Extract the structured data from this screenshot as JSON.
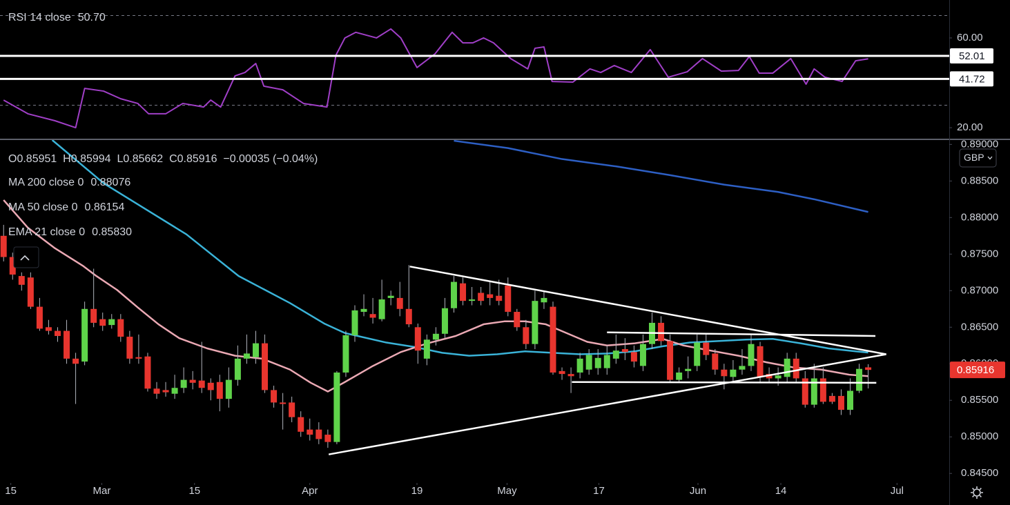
{
  "chart_data": [
    {
      "type": "line",
      "xlim": [
        -0.4,
        105
      ],
      "ylim": [
        14.8,
        76.9
      ],
      "yticks": [
        {
          "value": 20,
          "label": "20.00"
        },
        {
          "value": 60,
          "label": "60.00"
        }
      ],
      "bands": [
        30,
        70
      ],
      "levels": [
        52.01,
        41.72
      ],
      "series": [
        {
          "name": "RSI 14 close",
          "color": "#a03fc7",
          "last_label": "50.70",
          "x": [
            0,
            2.7,
            5.7,
            8.0,
            9.0,
            11.1,
            13.0,
            14.9,
            16.1,
            18.0,
            19.9,
            22.2,
            23.0,
            24.1,
            25.7,
            26.8,
            28.0,
            28.9,
            31.0,
            33.3,
            35.9,
            36.9,
            37.9,
            39.1,
            41.4,
            43.0,
            44.1,
            45.9,
            47.9,
            49.8,
            51.0,
            52.1,
            53.3,
            54.4,
            56.3,
            58.2,
            59.0,
            60.0,
            60.9,
            63.2,
            65.1,
            66.3,
            67.8,
            69.7,
            71.8,
            73.8,
            75.9,
            77.6,
            79.7,
            81.6,
            82.8,
            83.9,
            85.4,
            87.4,
            89.1,
            90.0,
            91.2,
            93.1,
            94.6,
            96.0
          ],
          "values": [
            32.3,
            26.2,
            23.1,
            20.0,
            37.5,
            36.3,
            32.9,
            30.8,
            26.2,
            26.2,
            30.8,
            29.2,
            32.3,
            29.2,
            43.1,
            44.6,
            48.6,
            38.5,
            36.9,
            30.8,
            29.2,
            52.3,
            60.0,
            62.5,
            60.0,
            64.0,
            60.0,
            46.8,
            52.9,
            62.5,
            57.8,
            57.8,
            60.0,
            57.8,
            50.8,
            46.2,
            55.4,
            56.0,
            40.6,
            40.3,
            46.2,
            44.6,
            47.7,
            44.6,
            54.8,
            42.5,
            44.9,
            50.8,
            45.2,
            45.5,
            51.7,
            44.3,
            44.3,
            50.8,
            39.4,
            46.2,
            42.5,
            40.6,
            49.8,
            50.7
          ]
        }
      ]
    },
    {
      "type": "candlestick",
      "ohlc_text": "O0.85951  H0.85994  L0.85662  C0.85916  −0.00035 (−0.04%)",
      "currency": "GBP",
      "up_color": "#5fd34a",
      "down_color": "#e8352e",
      "xlim": [
        -0.4,
        105
      ],
      "ylim": [
        0.8437,
        0.8906
      ],
      "xticks": [
        {
          "value": 0.8,
          "label": "15"
        },
        {
          "value": 10.9,
          "label": "Mar"
        },
        {
          "value": 21.2,
          "label": "15"
        },
        {
          "value": 34.0,
          "label": "Apr"
        },
        {
          "value": 45.9,
          "label": "19"
        },
        {
          "value": 55.9,
          "label": "May"
        },
        {
          "value": 66.1,
          "label": "17"
        },
        {
          "value": 77.1,
          "label": "Jun"
        },
        {
          "value": 86.3,
          "label": "14"
        },
        {
          "value": 99.2,
          "label": "Jul"
        }
      ],
      "yticks": [
        {
          "value": 0.845,
          "label": "0.84500"
        },
        {
          "value": 0.85,
          "label": "0.85000"
        },
        {
          "value": 0.855,
          "label": "0.85500"
        },
        {
          "value": 0.86,
          "label": "0.86000"
        },
        {
          "value": 0.865,
          "label": "0.86500"
        },
        {
          "value": 0.87,
          "label": "0.87000"
        },
        {
          "value": 0.875,
          "label": "0.87500"
        },
        {
          "value": 0.88,
          "label": "0.88000"
        },
        {
          "value": 0.885,
          "label": "0.88500"
        },
        {
          "value": 0.89,
          "label": "0.89000"
        }
      ],
      "x": [
        0,
        1,
        2,
        3,
        4,
        5,
        6,
        7,
        8,
        9,
        10,
        11,
        12,
        13,
        14,
        15,
        16,
        17,
        18,
        19,
        20,
        21,
        22,
        23,
        24,
        25,
        26,
        27,
        28,
        29,
        30,
        31,
        32,
        33,
        34,
        35,
        36,
        37,
        38,
        39,
        40,
        41,
        42,
        43,
        44,
        45,
        46,
        47,
        48,
        49,
        50,
        51,
        52,
        53,
        54,
        55,
        56,
        57,
        58,
        59,
        60,
        61,
        62,
        63,
        64,
        65,
        66,
        67,
        68,
        69,
        70,
        71,
        72,
        73,
        74,
        75,
        76,
        77,
        78,
        79,
        80,
        81,
        82,
        83,
        84,
        85,
        86,
        87,
        88,
        89,
        90,
        91,
        92,
        93,
        94,
        95,
        96
      ],
      "open": [
        0.8775,
        0.8746,
        0.872,
        0.8718,
        0.8678,
        0.865,
        0.8645,
        0.8645,
        0.8607,
        0.8603,
        0.8675,
        0.8661,
        0.8653,
        0.8661,
        0.8637,
        0.8609,
        0.861,
        0.8566,
        0.8564,
        0.8559,
        0.8567,
        0.8578,
        0.8577,
        0.8574,
        0.8575,
        0.8552,
        0.8578,
        0.8607,
        0.8609,
        0.8628,
        0.8564,
        0.8547,
        0.8547,
        0.8527,
        0.851,
        0.851,
        0.8503,
        0.8493,
        0.8588,
        0.8639,
        0.8671,
        0.8668,
        0.8661,
        0.869,
        0.869,
        0.8675,
        0.865,
        0.8607,
        0.8633,
        0.8641,
        0.8676,
        0.871,
        0.8686,
        0.8697,
        0.8695,
        0.8693,
        0.8707,
        0.8671,
        0.865,
        0.8627,
        0.8684,
        0.8678,
        0.859,
        0.8586,
        0.8588,
        0.8592,
        0.8594,
        0.8594,
        0.8607,
        0.862,
        0.8616,
        0.8597,
        0.8627,
        0.8656,
        0.8631,
        0.8578,
        0.859,
        0.8597,
        0.8629,
        0.8614,
        0.8592,
        0.8582,
        0.8592,
        0.8597,
        0.8624,
        0.8586,
        0.858,
        0.8582,
        0.8607,
        0.858,
        0.8544,
        0.858,
        0.8556,
        0.8556,
        0.8537,
        0.8563,
        0.85951
      ],
      "high": [
        0.879,
        0.8752,
        0.8725,
        0.8725,
        0.869,
        0.866,
        0.865,
        0.866,
        0.8615,
        0.8685,
        0.873,
        0.867,
        0.8668,
        0.8668,
        0.8645,
        0.864,
        0.8615,
        0.8575,
        0.8575,
        0.8585,
        0.8595,
        0.859,
        0.863,
        0.858,
        0.8585,
        0.8595,
        0.8625,
        0.864,
        0.8645,
        0.864,
        0.857,
        0.856,
        0.8555,
        0.8535,
        0.8525,
        0.852,
        0.851,
        0.859,
        0.8645,
        0.868,
        0.8695,
        0.869,
        0.8715,
        0.87,
        0.8712,
        0.8735,
        0.8655,
        0.864,
        0.865,
        0.869,
        0.872,
        0.8718,
        0.8705,
        0.8705,
        0.8712,
        0.8715,
        0.8718,
        0.8675,
        0.866,
        0.87,
        0.87,
        0.8685,
        0.8595,
        0.8595,
        0.8615,
        0.862,
        0.862,
        0.8625,
        0.864,
        0.8635,
        0.8625,
        0.864,
        0.867,
        0.8665,
        0.864,
        0.8595,
        0.861,
        0.864,
        0.864,
        0.862,
        0.86,
        0.8605,
        0.862,
        0.864,
        0.863,
        0.8595,
        0.8595,
        0.8615,
        0.8615,
        0.859,
        0.86,
        0.8595,
        0.856,
        0.8565,
        0.858,
        0.86,
        0.85994
      ],
      "low": [
        0.874,
        0.8715,
        0.87,
        0.8675,
        0.8645,
        0.864,
        0.863,
        0.86,
        0.8545,
        0.8598,
        0.865,
        0.8645,
        0.8648,
        0.863,
        0.86,
        0.86,
        0.8562,
        0.8552,
        0.8555,
        0.8552,
        0.856,
        0.8565,
        0.856,
        0.855,
        0.8535,
        0.854,
        0.857,
        0.86,
        0.86,
        0.856,
        0.854,
        0.851,
        0.852,
        0.85,
        0.8495,
        0.849,
        0.8485,
        0.849,
        0.8582,
        0.863,
        0.8665,
        0.8655,
        0.8658,
        0.868,
        0.8665,
        0.865,
        0.86,
        0.8598,
        0.8625,
        0.8635,
        0.867,
        0.868,
        0.868,
        0.868,
        0.868,
        0.868,
        0.8665,
        0.8645,
        0.862,
        0.862,
        0.8675,
        0.8585,
        0.8578,
        0.856,
        0.858,
        0.8585,
        0.8585,
        0.8585,
        0.86,
        0.8605,
        0.8595,
        0.859,
        0.862,
        0.8625,
        0.8575,
        0.8575,
        0.858,
        0.859,
        0.8605,
        0.8585,
        0.8565,
        0.8575,
        0.8585,
        0.859,
        0.8575,
        0.8575,
        0.857,
        0.8575,
        0.8575,
        0.854,
        0.854,
        0.8545,
        0.8545,
        0.853,
        0.853,
        0.856,
        0.85662
      ],
      "close": [
        0.8746,
        0.8722,
        0.8708,
        0.8678,
        0.8648,
        0.8645,
        0.8638,
        0.8607,
        0.86,
        0.8675,
        0.8656,
        0.8652,
        0.8661,
        0.8637,
        0.8607,
        0.8607,
        0.8566,
        0.8559,
        0.8561,
        0.8567,
        0.8578,
        0.8574,
        0.8567,
        0.8564,
        0.8552,
        0.8578,
        0.8607,
        0.8614,
        0.8628,
        0.8564,
        0.8547,
        0.8545,
        0.8527,
        0.8507,
        0.8503,
        0.8497,
        0.8493,
        0.8588,
        0.8639,
        0.8673,
        0.8675,
        0.8663,
        0.8688,
        0.8693,
        0.8675,
        0.8654,
        0.8618,
        0.8633,
        0.8641,
        0.8676,
        0.8712,
        0.8686,
        0.8688,
        0.8686,
        0.869,
        0.8686,
        0.8671,
        0.865,
        0.8627,
        0.8686,
        0.869,
        0.8588,
        0.8586,
        0.8583,
        0.8607,
        0.8612,
        0.8608,
        0.8612,
        0.8618,
        0.8616,
        0.8603,
        0.8627,
        0.8656,
        0.8631,
        0.8578,
        0.8588,
        0.8593,
        0.8629,
        0.8612,
        0.8592,
        0.8583,
        0.8592,
        0.8597,
        0.8627,
        0.8582,
        0.858,
        0.8584,
        0.8607,
        0.858,
        0.8544,
        0.858,
        0.8548,
        0.8548,
        0.8537,
        0.8563,
        0.8593,
        0.85916
      ],
      "overlays": [
        {
          "name": "MA 200 close 0",
          "color": "#2d5fc4",
          "last_label": "0.88076",
          "x": [
            50,
            56,
            62,
            68,
            74,
            80,
            86,
            90,
            96
          ],
          "values": [
            0.8905,
            0.8895,
            0.888,
            0.887,
            0.8858,
            0.8845,
            0.8835,
            0.8825,
            0.88076
          ]
        },
        {
          "name": "MA 50 close 0",
          "color": "#3ab3d8",
          "last_label": "0.86154",
          "x": [
            5.4,
            11.1,
            20.3,
            26.1,
            31.8,
            35.6,
            37.9,
            42.5,
            45.6,
            48.7,
            51.7,
            54.8,
            57.9,
            60.9,
            64.0,
            67.1,
            70.1,
            73.2,
            76.2,
            79.3,
            82.4,
            85.4,
            88.5,
            91.6,
            94.6,
            96
          ],
          "values": [
            0.8906,
            0.8847,
            0.8777,
            0.872,
            0.8683,
            0.8655,
            0.8642,
            0.8629,
            0.8623,
            0.8615,
            0.8611,
            0.8613,
            0.8617,
            0.8615,
            0.8613,
            0.8614,
            0.8617,
            0.8624,
            0.8629,
            0.8631,
            0.8633,
            0.8634,
            0.8628,
            0.8621,
            0.8617,
            0.86154
          ]
        },
        {
          "name": "EMA 21 close 0",
          "color": "#eba9b4",
          "last_label": "0.85830",
          "x": [
            0,
            2.7,
            5.7,
            8.8,
            10.3,
            12.6,
            14.9,
            17.2,
            19.5,
            22.6,
            25.7,
            28.7,
            31.8,
            34.1,
            36.0,
            37.9,
            41.0,
            44.1,
            47.1,
            50.2,
            53.3,
            55.6,
            57.9,
            60.2,
            62.5,
            64.8,
            67.0,
            70.1,
            73.2,
            75.5,
            78.5,
            81.6,
            84.7,
            87.7,
            90.8,
            93.9,
            96.0
          ],
          "values": [
            0.8824,
            0.8786,
            0.8758,
            0.8734,
            0.872,
            0.8701,
            0.8677,
            0.8654,
            0.8635,
            0.8621,
            0.8611,
            0.8607,
            0.8592,
            0.8574,
            0.8562,
            0.8575,
            0.8597,
            0.8616,
            0.8628,
            0.8638,
            0.8654,
            0.8658,
            0.8658,
            0.8654,
            0.8642,
            0.863,
            0.8625,
            0.8628,
            0.8634,
            0.8625,
            0.8618,
            0.8611,
            0.8602,
            0.8595,
            0.8592,
            0.8585,
            0.8583
          ]
        }
      ],
      "trendlines": [
        {
          "x": [
            45.1,
            98.0
          ],
          "values": [
            0.8733,
            0.8613
          ]
        },
        {
          "x": [
            36.1,
            98.0
          ],
          "values": [
            0.8476,
            0.8613
          ]
        },
        {
          "x": [
            67.0,
            96.8
          ],
          "values": [
            0.8643,
            0.8638
          ]
        },
        {
          "x": [
            63.1,
            96.9
          ],
          "values": [
            0.8575,
            0.8574
          ]
        }
      ]
    }
  ]
}
